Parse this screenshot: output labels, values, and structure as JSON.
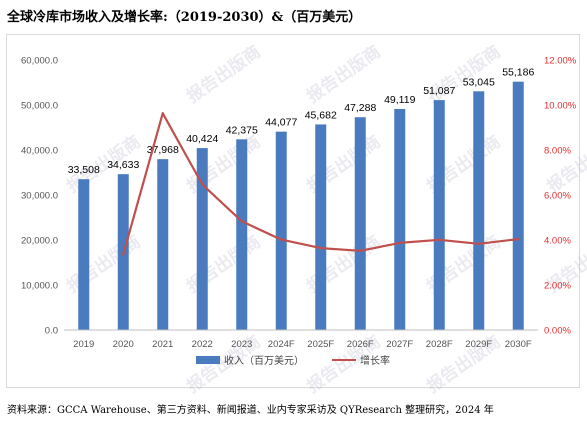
{
  "title": "全球冷库市场收入及增长率:（2019-2030）&（百万美元）",
  "source": "资料来源：GCCA Warehouse、第三方资料、新闻报道、业内专家采访及 QYResearch 整理研究，2024 年",
  "watermark": "报告出版商",
  "chart_data": {
    "type": "bar",
    "categories": [
      "2019",
      "2020",
      "2021",
      "2022",
      "2023",
      "2024F",
      "2025F",
      "2026F",
      "2027F",
      "2028F",
      "2029F",
      "2030F"
    ],
    "series": [
      {
        "name": "收入（百万美元）",
        "type": "bar",
        "values": [
          33508,
          34633,
          37968,
          40424,
          42375,
          44077,
          45682,
          47288,
          49119,
          51087,
          53045,
          55186
        ],
        "labels": [
          "33,508",
          "34,633",
          "37,968",
          "40,424",
          "42,375",
          "44,077",
          "45,682",
          "47,288",
          "49,119",
          "51,087",
          "53,045",
          "55,186"
        ]
      },
      {
        "name": "增长率",
        "type": "line",
        "axis": "right",
        "values": [
          null,
          3.36,
          9.63,
          6.47,
          4.83,
          4.02,
          3.64,
          3.52,
          3.87,
          4.01,
          3.83,
          4.04
        ]
      }
    ],
    "y_left": {
      "ylim": [
        0,
        60000
      ],
      "ticks": [
        "0.0",
        "10,000.0",
        "20,000.0",
        "30,000.0",
        "40,000.0",
        "50,000.0",
        "60,000.0"
      ]
    },
    "y_right": {
      "ylim": [
        0,
        12
      ],
      "ticks": [
        "0.00%",
        "2.00%",
        "4.00%",
        "6.00%",
        "8.00%",
        "10.00%",
        "12.00%"
      ]
    },
    "colors": {
      "bar": "#4a7bbf",
      "line": "#c0504d",
      "right_axis": "#e03030"
    },
    "grid": false,
    "legend": "bottom"
  }
}
